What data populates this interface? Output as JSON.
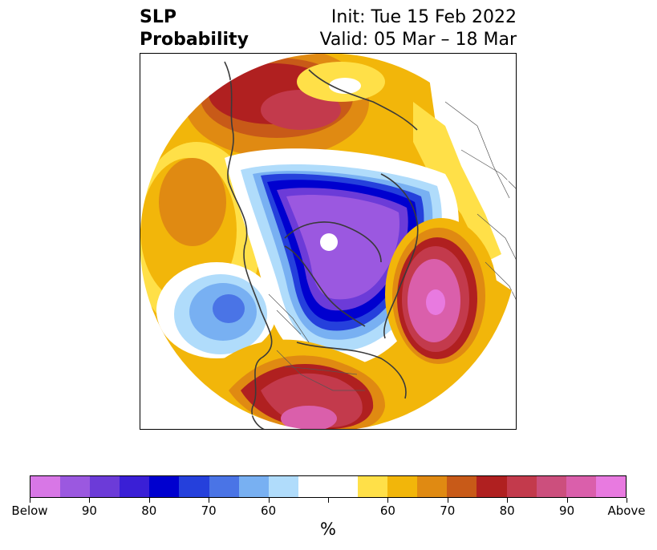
{
  "title": {
    "left_line1": "SLP",
    "left_line2": "Probability",
    "right_line1": "Init: Tue 15 Feb 2022",
    "right_line2": "Valid: 05 Mar – 18 Mar"
  },
  "colorbar": {
    "colors": [
      "#d877e6",
      "#9b58e0",
      "#6c3bd8",
      "#3a1fd6",
      "#0000cf",
      "#2540dc",
      "#4a74e6",
      "#78b0f2",
      "#b0dcfb",
      "#ffffff",
      "#ffffff",
      "#ffe048",
      "#f2b60a",
      "#e08a12",
      "#c85a18",
      "#b02020",
      "#c33a4c",
      "#cc4f7d",
      "#da5fab",
      "#e87ae0"
    ],
    "tick_labels": [
      "Below",
      "90",
      "80",
      "70",
      "60",
      "",
      "60",
      "70",
      "80",
      "90",
      "Above"
    ],
    "unit": "%"
  }
}
